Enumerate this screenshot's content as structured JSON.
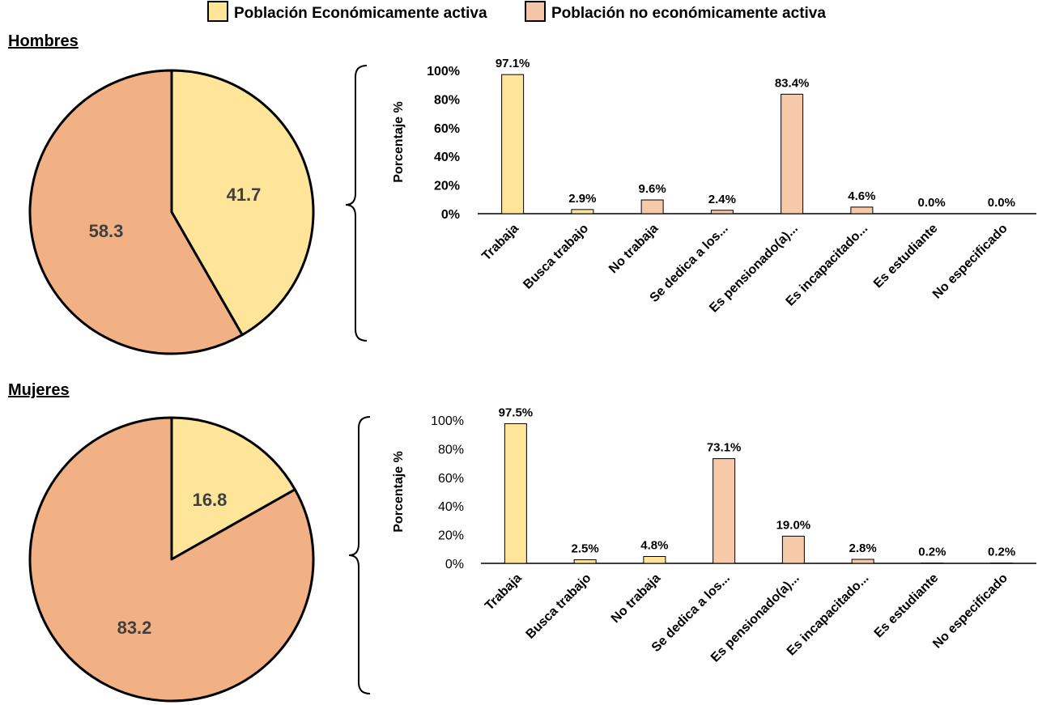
{
  "legend": {
    "items": [
      {
        "label": "Población Económicamente activa",
        "color": "#FEE59A"
      },
      {
        "label": "Población no económicamente activa",
        "color": "#F4C6A8"
      }
    ]
  },
  "colors": {
    "pea_pie": "#FEE59A",
    "pnea_pie": "#F2B185",
    "pea_bar": "#FEE59A",
    "pnea_bar": "#F8C9A9",
    "outline": "#000000"
  },
  "chart_data": [
    {
      "type": "pie",
      "title": "Hombres",
      "slices": [
        {
          "label": "41.7",
          "value": 41.7,
          "series": "Población Económicamente activa"
        },
        {
          "label": "58.3",
          "value": 58.3,
          "series": "Población no económicamente activa"
        }
      ]
    },
    {
      "type": "bar",
      "title": "",
      "ylabel": "Porcentaje %",
      "ylim": [
        0,
        100
      ],
      "yticks": [
        "0%",
        "20%",
        "40%",
        "60%",
        "80%",
        "100%"
      ],
      "ytick_bold": true,
      "categories": [
        "Trabaja",
        "Busca trabajo",
        "No trabaja",
        "Se dedica a los...",
        "Es pensionado(a)...",
        "Es incapacitado...",
        "Es estudiante",
        "No especificado"
      ],
      "values": [
        97.1,
        2.9,
        9.6,
        2.4,
        83.4,
        4.6,
        0.0,
        0.0
      ],
      "value_labels": [
        "97.1%",
        "2.9%",
        "9.6%",
        "2.4%",
        "83.4%",
        "4.6%",
        "0.0%",
        "0.0%"
      ],
      "bar_series": [
        "pea",
        "pea",
        "pnea",
        "pnea",
        "pnea",
        "pnea",
        "pnea",
        "pnea"
      ]
    },
    {
      "type": "pie",
      "title": "Mujeres",
      "slices": [
        {
          "label": "16.8",
          "value": 16.8,
          "series": "Población Económicamente activa"
        },
        {
          "label": "83.2",
          "value": 83.2,
          "series": "Población no económicamente activa"
        }
      ]
    },
    {
      "type": "bar",
      "title": "",
      "ylabel": "Porcentaje %",
      "ylim": [
        0,
        100
      ],
      "yticks": [
        "0%",
        "20%",
        "40%",
        "60%",
        "80%",
        "100%"
      ],
      "ytick_bold": false,
      "categories": [
        "Trabaja",
        "Busca trabajo",
        "No trabaja",
        "Se dedica a los...",
        "Es pensionado(a)...",
        "Es incapacitado...",
        "Es estudiante",
        "No especificado"
      ],
      "values": [
        97.5,
        2.5,
        4.8,
        73.1,
        19.0,
        2.8,
        0.2,
        0.2
      ],
      "value_labels": [
        "97.5%",
        "2.5%",
        "4.8%",
        "73.1%",
        "19.0%",
        "2.8%",
        "0.2%",
        "0.2%"
      ],
      "bar_series": [
        "pea",
        "pea",
        "pea",
        "pnea",
        "pnea",
        "pnea",
        "pnea",
        "pnea"
      ]
    }
  ]
}
